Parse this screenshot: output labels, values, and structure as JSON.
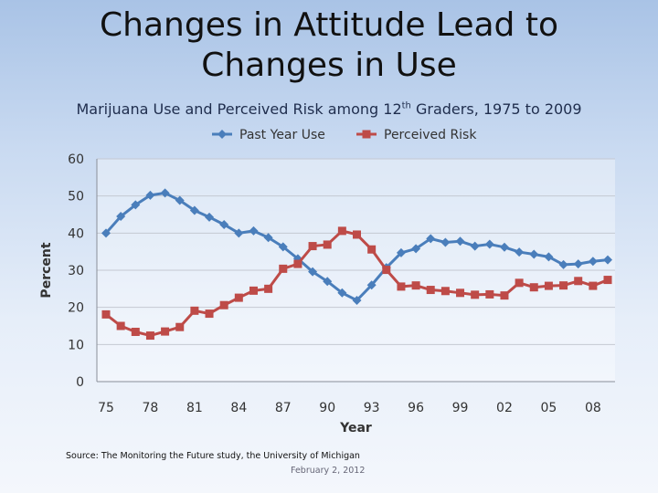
{
  "slide": {
    "title_line1": "Changes in Attitude Lead to",
    "title_line2": "Changes in Use",
    "subtitle_pre": "Marijuana Use and Perceived Risk among 12",
    "subtitle_sup": "th",
    "subtitle_post": " Graders, 1975 to 2009",
    "source": "Source: The Monitoring the Future study, the University of Michigan",
    "date": "February 2, 2012"
  },
  "chart_data": {
    "type": "line",
    "title": "Marijuana Use and Perceived Risk among 12th Graders, 1975 to 2009",
    "xlabel": "Year",
    "ylabel": "Percent",
    "ylim": [
      0,
      60
    ],
    "yticks": [
      0,
      10,
      20,
      30,
      40,
      50,
      60
    ],
    "x": [
      1975,
      1976,
      1977,
      1978,
      1979,
      1980,
      1981,
      1982,
      1983,
      1984,
      1985,
      1986,
      1987,
      1988,
      1989,
      1990,
      1991,
      1992,
      1993,
      1994,
      1995,
      1996,
      1997,
      1998,
      1999,
      2000,
      2001,
      2002,
      2003,
      2004,
      2005,
      2006,
      2007,
      2008,
      2009
    ],
    "xtick_labels": [
      "75",
      "78",
      "81",
      "84",
      "87",
      "90",
      "93",
      "96",
      "99",
      "02",
      "05",
      "08"
    ],
    "grid": true,
    "legend_position": "top",
    "series": [
      {
        "name": "Past Year Use",
        "color": "#4a7ebb",
        "marker": "diamond",
        "values": [
          40.0,
          44.5,
          47.6,
          50.2,
          50.8,
          48.8,
          46.1,
          44.3,
          42.3,
          40.0,
          40.6,
          38.8,
          36.3,
          33.1,
          29.6,
          27.0,
          23.9,
          21.9,
          26.0,
          30.7,
          34.7,
          35.8,
          38.5,
          37.5,
          37.8,
          36.5,
          37.0,
          36.2,
          34.9,
          34.3,
          33.6,
          31.5,
          31.7,
          32.4,
          32.8
        ]
      },
      {
        "name": "Perceived Risk",
        "color": "#be4b48",
        "marker": "square",
        "values": [
          18.1,
          15.0,
          13.4,
          12.4,
          13.5,
          14.7,
          19.1,
          18.3,
          20.6,
          22.6,
          24.5,
          25.0,
          30.4,
          31.7,
          36.5,
          36.9,
          40.6,
          39.6,
          35.6,
          30.1,
          25.6,
          25.9,
          24.7,
          24.4,
          23.9,
          23.4,
          23.5,
          23.2,
          26.6,
          25.4,
          25.8,
          25.9,
          27.1,
          25.8,
          27.4
        ]
      }
    ]
  }
}
